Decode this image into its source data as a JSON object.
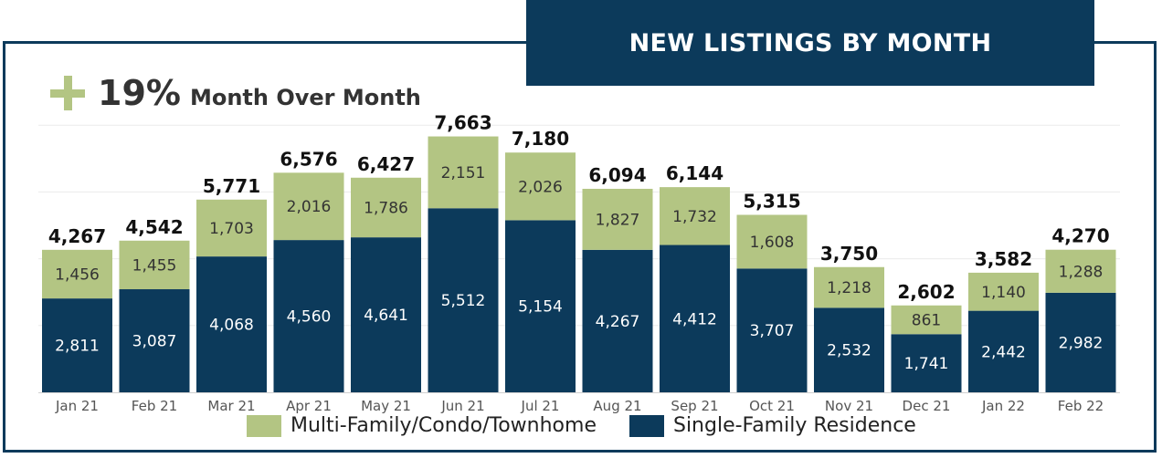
{
  "title": "NEW LISTINGS BY MONTH",
  "summary": {
    "change": "19%",
    "label": "Month Over Month",
    "icon": "plus-icon"
  },
  "colors": {
    "single": "#0c3a5b",
    "multi": "#b3c583",
    "frame": "#0c3a5b"
  },
  "chart_data": {
    "type": "bar",
    "stacked": true,
    "categories": [
      "Jan 21",
      "Feb 21",
      "Mar 21",
      "Apr 21",
      "May 21",
      "Jun 21",
      "Jul 21",
      "Aug 21",
      "Sep 21",
      "Oct 21",
      "Nov 21",
      "Dec 21",
      "Jan 22",
      "Feb 22"
    ],
    "series": [
      {
        "name": "Single-Family Residence",
        "color": "#0c3a5b",
        "values": [
          2811,
          3087,
          4068,
          4560,
          4641,
          5512,
          5154,
          4267,
          4412,
          3707,
          2532,
          1741,
          2442,
          2982
        ]
      },
      {
        "name": "Multi-Family/Condo/Townhome",
        "color": "#b3c583",
        "values": [
          1456,
          1455,
          1703,
          2016,
          1786,
          2151,
          2026,
          1827,
          1732,
          1608,
          1218,
          861,
          1140,
          1288
        ]
      }
    ],
    "totals": [
      "4,267",
      "4,542",
      "5,771",
      "6,576",
      "6,427",
      "7,663",
      "7,180",
      "6,094",
      "6,144",
      "5,315",
      "3,750",
      "2,602",
      "3,582",
      "4,270"
    ],
    "ylim": [
      0,
      8000
    ],
    "grid": true,
    "legend_position": "bottom"
  },
  "legend": [
    {
      "label": "Multi-Family/Condo/Townhome",
      "color": "#b3c583"
    },
    {
      "label": "Single-Family Residence",
      "color": "#0c3a5b"
    }
  ]
}
